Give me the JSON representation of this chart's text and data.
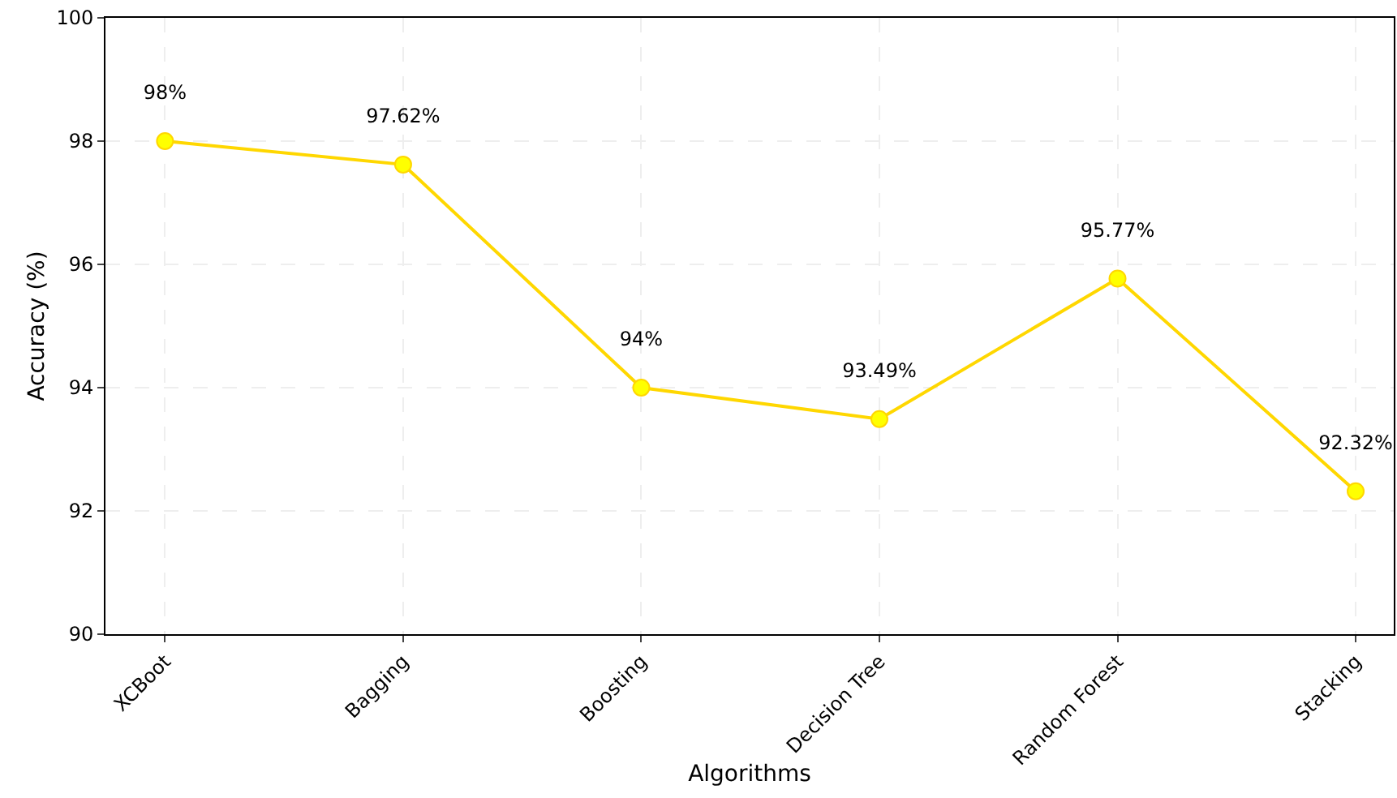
{
  "chart_data": {
    "type": "line",
    "xlabel": "Algorithms",
    "ylabel": "Accuracy (%)",
    "categories": [
      "XCBoot",
      "Bagging",
      "Boosting",
      "Decision Tree",
      "Random Forest",
      "Stacking"
    ],
    "series": [
      {
        "color": "#ffd700",
        "values": [
          98,
          97.62,
          94,
          93.49,
          95.77,
          92.32
        ],
        "value_labels": [
          "98%",
          "97.62%",
          "94%",
          "93.49%",
          "95.77%",
          "92.32%"
        ]
      }
    ],
    "ylim": [
      90,
      100
    ],
    "yticks": [
      90,
      92,
      94,
      96,
      98,
      100
    ],
    "grid": true,
    "marker": "circle",
    "line_style": "solid"
  }
}
